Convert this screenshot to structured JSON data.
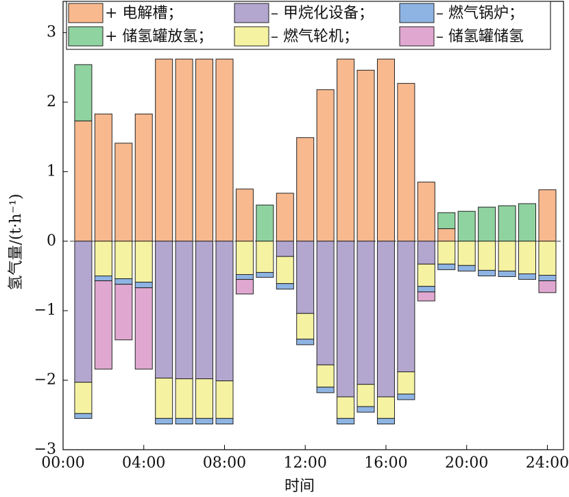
{
  "chart_data": {
    "type": "bar",
    "x_label": "时间",
    "y_label": "氢气量/(t·h⁻¹)",
    "x": [
      1,
      2,
      3,
      4,
      5,
      6,
      7,
      8,
      9,
      10,
      11,
      12,
      13,
      14,
      15,
      16,
      17,
      18,
      19,
      20,
      21,
      22,
      23,
      24
    ],
    "series": [
      {
        "name": "+ 电解槽；",
        "color": "#f9b98e",
        "values": [
          1.73,
          1.83,
          1.41,
          1.83,
          2.62,
          2.62,
          2.62,
          2.62,
          0.75,
          0,
          0.69,
          1.49,
          2.18,
          2.62,
          2.46,
          2.62,
          2.27,
          0.85,
          0.18,
          0,
          0,
          0,
          0,
          0.74
        ]
      },
      {
        "name": "– 甲烷化设备；",
        "color": "#b3a7d0",
        "values": [
          -2.03,
          0,
          0,
          0,
          -1.97,
          -1.98,
          -1.98,
          -2.01,
          0,
          0,
          -0.22,
          -1.04,
          -1.78,
          -2.24,
          -2.06,
          -2.24,
          -1.88,
          -0.33,
          0,
          0,
          0,
          0,
          0,
          0
        ]
      },
      {
        "name": "– 燃气锅炉；",
        "color": "#8eb4e3",
        "values": [
          -0.07,
          -0.07,
          -0.08,
          -0.08,
          -0.08,
          -0.08,
          -0.08,
          -0.08,
          -0.07,
          -0.07,
          -0.08,
          -0.08,
          -0.08,
          -0.08,
          -0.08,
          -0.08,
          -0.08,
          -0.08,
          -0.08,
          -0.08,
          -0.08,
          -0.08,
          -0.08,
          -0.08
        ]
      },
      {
        "name": "+ 储氢罐放氢；",
        "color": "#8fd3a0",
        "values": [
          0.81,
          0,
          0,
          0,
          0,
          0,
          0,
          0,
          0,
          0.52,
          0,
          0,
          0,
          0,
          0,
          0,
          0,
          0,
          0.23,
          0.43,
          0.49,
          0.51,
          0.54,
          0
        ]
      },
      {
        "name": "– 燃气轮机；",
        "color": "#f5f2a2",
        "values": [
          -0.45,
          -0.5,
          -0.54,
          -0.59,
          -0.58,
          -0.57,
          -0.57,
          -0.54,
          -0.48,
          -0.45,
          -0.39,
          -0.37,
          -0.32,
          -0.31,
          -0.32,
          -0.31,
          -0.32,
          -0.32,
          -0.33,
          -0.35,
          -0.42,
          -0.43,
          -0.47,
          -0.49
        ]
      },
      {
        "name": "– 储氢罐储氢",
        "color": "#e0a8d0",
        "values": [
          0,
          -1.27,
          -0.8,
          -1.17,
          0,
          0,
          0,
          0,
          -0.21,
          0,
          0,
          0,
          0,
          0,
          0,
          0,
          0,
          -0.13,
          0,
          0,
          0,
          0,
          0,
          -0.17
        ]
      }
    ],
    "xlim": [
      0,
      24.8
    ],
    "xticks": [
      {
        "value": 0,
        "label": "00:00"
      },
      {
        "value": 4,
        "label": "04:00"
      },
      {
        "value": 8,
        "label": "08:00"
      },
      {
        "value": 12,
        "label": "12:00"
      },
      {
        "value": 16,
        "label": "16:00"
      },
      {
        "value": 20,
        "label": "20:00"
      },
      {
        "value": 24,
        "label": "24:00"
      }
    ],
    "ylim": [
      -3,
      3.45
    ],
    "yticks": [
      {
        "value": -3,
        "label": "−3"
      },
      {
        "value": -2,
        "label": "−2"
      },
      {
        "value": -1,
        "label": "−1"
      },
      0,
      1,
      2,
      3
    ]
  }
}
